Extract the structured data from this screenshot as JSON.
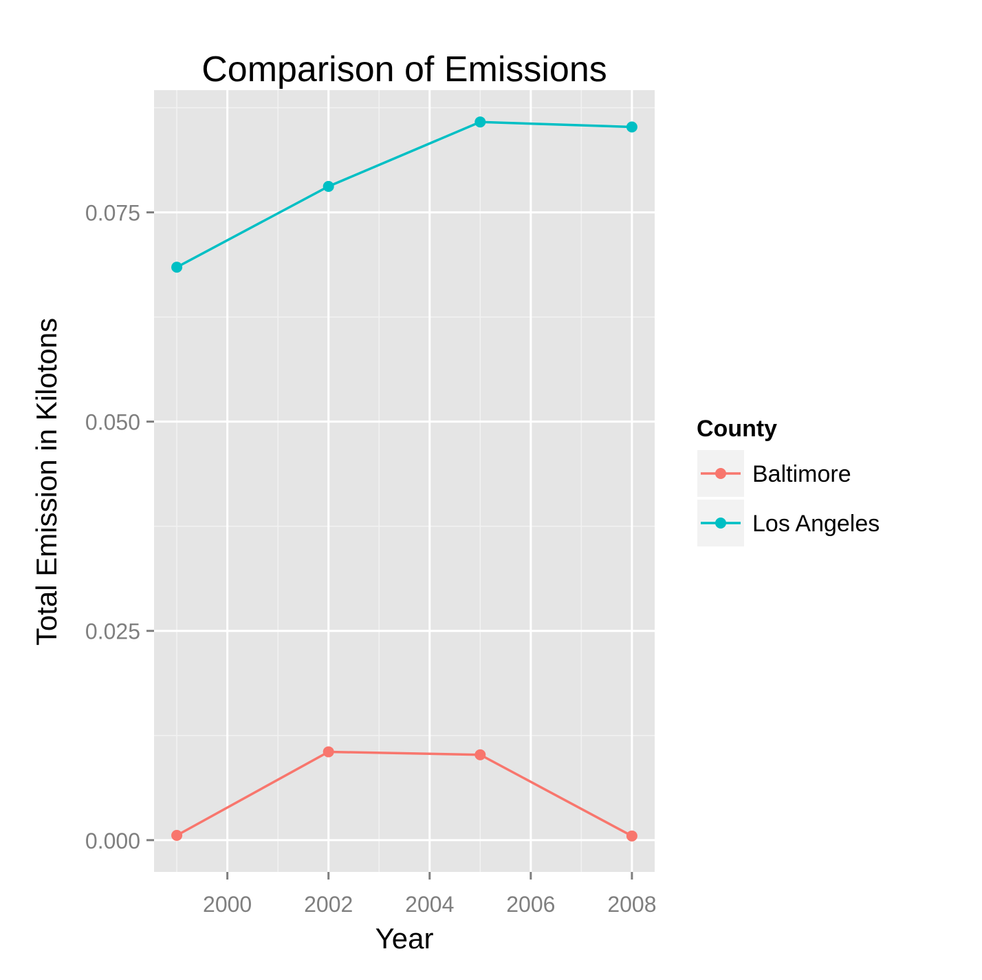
{
  "chart_data": {
    "type": "line",
    "title": "Comparison of Emissions",
    "xlabel": "Year",
    "ylabel": "Total Emission in Kilotons",
    "xlim": [
      1998.55,
      2008.45
    ],
    "ylim": [
      -0.0038,
      0.0896
    ],
    "x_ticks": [
      2000,
      2002,
      2004,
      2006,
      2008
    ],
    "x_tick_labels": [
      "2000",
      "2002",
      "2004",
      "2006",
      "2008"
    ],
    "y_ticks": [
      0,
      0.025,
      0.05,
      0.075
    ],
    "y_tick_labels": [
      "0.000",
      "0.025",
      "0.050",
      "0.075"
    ],
    "grid": true,
    "x": [
      1999,
      2002,
      2005,
      2008
    ],
    "series": [
      {
        "name": "Baltimore",
        "color": "#F8766D",
        "values": [
          0.00057,
          0.01055,
          0.0102,
          0.0005
        ]
      },
      {
        "name": "Los Angeles",
        "color": "#00BFC4",
        "values": [
          0.06845,
          0.0781,
          0.0858,
          0.0852
        ]
      }
    ],
    "legend": {
      "title": "County",
      "position": "right"
    }
  }
}
